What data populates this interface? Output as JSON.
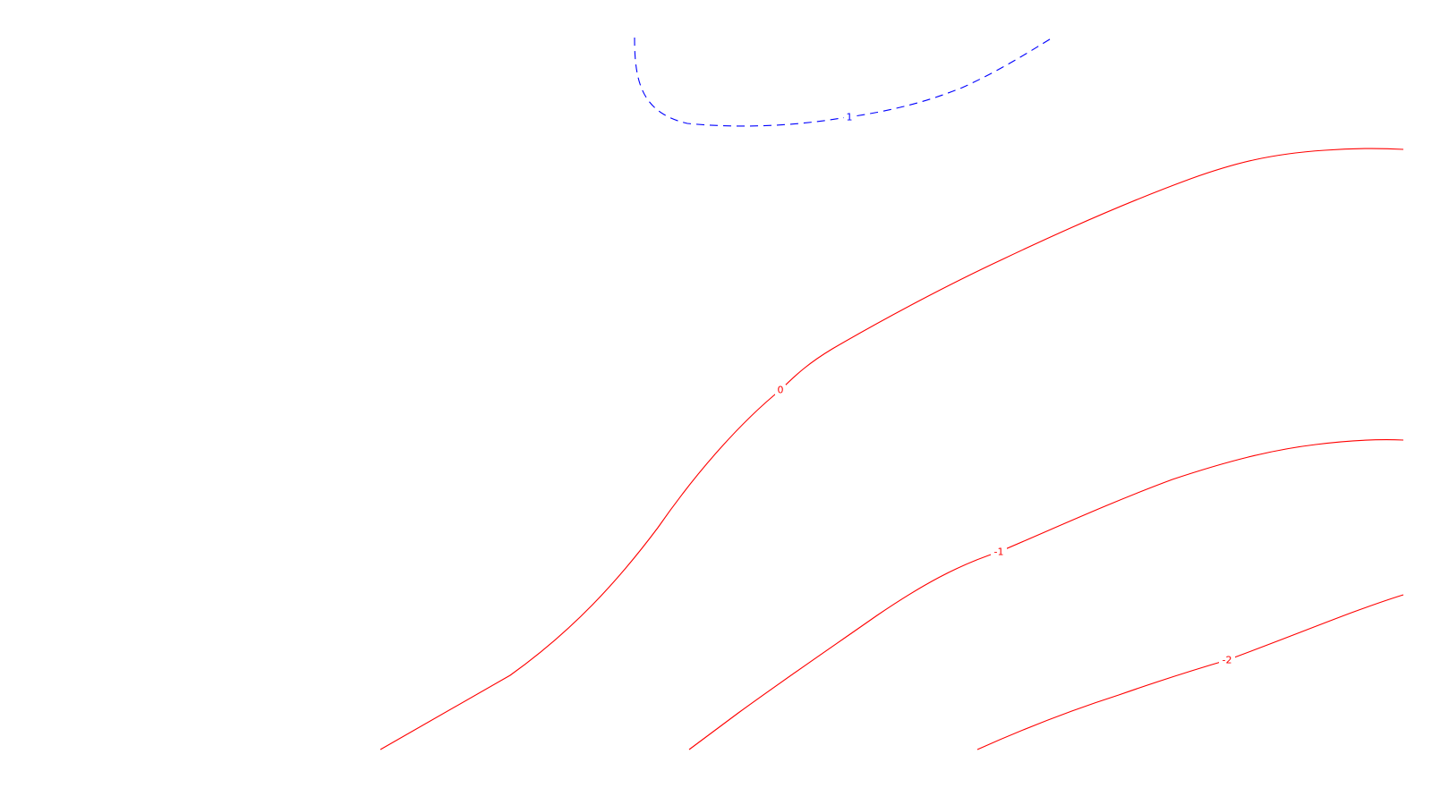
{
  "chart_data": {
    "type": "contour",
    "title": "",
    "xlabel": "",
    "ylabel": "",
    "axes_visible": false,
    "grid": false,
    "colors": {
      "positive": "#0000ff",
      "negative": "#ff0000",
      "zero": "#ff0000",
      "background": "#ffffff"
    },
    "contours": [
      {
        "level": 1,
        "label": "1",
        "color": "#0000ff",
        "style": "dashed"
      },
      {
        "level": 0,
        "label": "0",
        "color": "#ff0000",
        "style": "solid"
      },
      {
        "level": -1,
        "label": "-1",
        "color": "#ff0000",
        "style": "solid"
      },
      {
        "level": -2,
        "label": "-2",
        "color": "#ff0000",
        "style": "solid"
      }
    ]
  }
}
